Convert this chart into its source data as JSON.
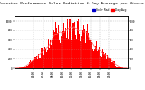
{
  "title": "Solar PV/Inverter Performance Solar Radiation & Day Average per Minute",
  "title_fontsize": 3.2,
  "bg_color": "#ffffff",
  "plot_bg_color": "#ffffff",
  "grid_color": "#aaaaaa",
  "bar_color": "#ff0000",
  "avg_line_color": "#ff6666",
  "legend_labels": [
    "Solar Rad",
    "Day Avg"
  ],
  "legend_colors": [
    "#0000cc",
    "#ff0000"
  ],
  "ylim": [
    0,
    1100
  ],
  "yticks": [
    0,
    200,
    400,
    600,
    800,
    1000
  ],
  "ytick_labels": [
    "0",
    "200",
    "400",
    "600",
    "800",
    "1000"
  ],
  "n_bars": 144,
  "time_labels": [
    "04:00",
    "06:00",
    "08:00",
    "10:00",
    "12:00",
    "14:00",
    "16:00",
    "18:00",
    "20:00"
  ],
  "time_label_hours": [
    4,
    6,
    8,
    10,
    12,
    14,
    16,
    18,
    20
  ],
  "dashed_hlines": [
    200,
    400,
    600,
    800,
    1000
  ],
  "outer_border_color": "#000000"
}
